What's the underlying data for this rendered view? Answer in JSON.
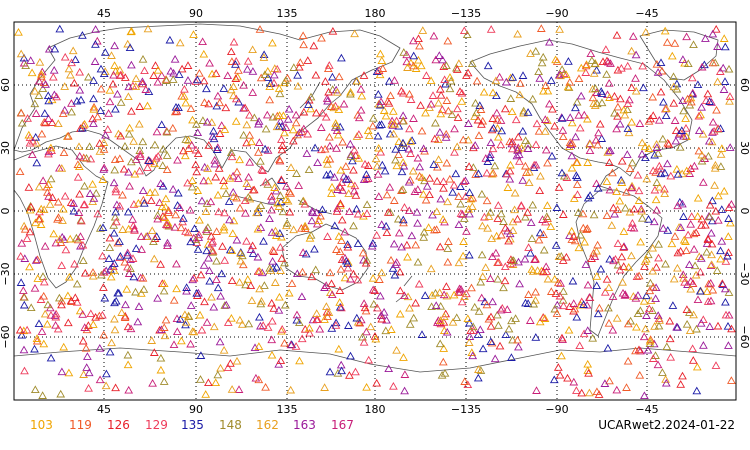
{
  "map": {
    "top_lon_labels": [
      "45",
      "90",
      "135",
      "180",
      "−135",
      "−90",
      "−45"
    ],
    "bottom_lon_labels": [
      "45",
      "90",
      "135",
      "180",
      "−135",
      "−90",
      "−45"
    ],
    "lat_labels": [
      "60",
      "30",
      "0",
      "−30",
      "−60"
    ],
    "lon_grid": [
      45,
      90,
      135,
      180,
      -135,
      -90,
      -45
    ],
    "lat_grid": [
      60,
      30,
      0,
      -30,
      -60
    ],
    "lon_start": 0,
    "lat_range": [
      -90,
      90
    ],
    "grid_style": "dotted",
    "marker": "triangle-outline",
    "land_color": "#ffffff",
    "coast_color": "#555555"
  },
  "legend": {
    "position": "bottom-left",
    "items": [
      {
        "label": "103",
        "color": "#f0a500"
      },
      {
        "label": "119",
        "color": "#f05a28"
      },
      {
        "label": "126",
        "color": "#e8202a"
      },
      {
        "label": "129",
        "color": "#ee3b5a"
      },
      {
        "label": "135",
        "color": "#1a1aa6"
      },
      {
        "label": "148",
        "color": "#a08c2c"
      },
      {
        "label": "162",
        "color": "#e8a020"
      },
      {
        "label": "163",
        "color": "#9a1a9a"
      },
      {
        "label": "167",
        "color": "#c81e78"
      }
    ]
  },
  "footer": {
    "label": "UCARwet2.2024-01-22"
  }
}
